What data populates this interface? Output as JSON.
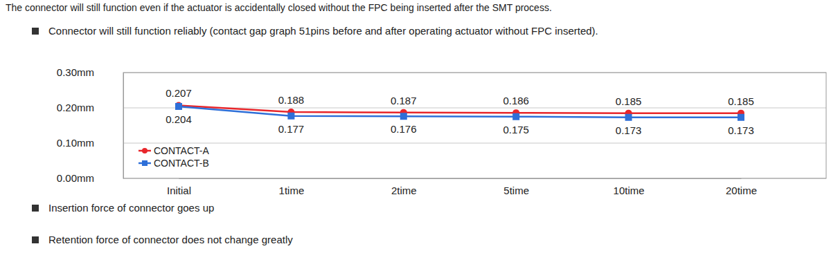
{
  "heading": "The connector will still function even if the actuator is accidentally closed without the FPC being inserted after the SMT process.",
  "bullets": [
    "Connector will still function reliably (contact gap graph 51pins before and after operating actuator without FPC inserted).",
    "Insertion force of connector goes up",
    "Retention force of connector does not change greatly"
  ],
  "chart_data": {
    "type": "line",
    "categories": [
      "Initial",
      "1time",
      "2time",
      "5time",
      "10time",
      "20time"
    ],
    "series": [
      {
        "name": "CONTACT-A",
        "color": "#e8262b",
        "marker": "circle",
        "values": [
          0.207,
          0.188,
          0.187,
          0.186,
          0.185,
          0.185
        ]
      },
      {
        "name": "CONTACT-B",
        "color": "#2e6fd8",
        "marker": "square",
        "values": [
          0.204,
          0.177,
          0.176,
          0.175,
          0.173,
          0.173
        ]
      }
    ],
    "ylim": [
      0,
      0.3
    ],
    "yticks": [
      {
        "value": 0,
        "label": "0.00mm"
      },
      {
        "value": 0.1,
        "label": "0.10mm"
      },
      {
        "value": 0.2,
        "label": "0.20mm"
      },
      {
        "value": 0.3,
        "label": "0.30mm"
      }
    ],
    "grid": true,
    "legend": "lower left",
    "data_labels": true
  }
}
